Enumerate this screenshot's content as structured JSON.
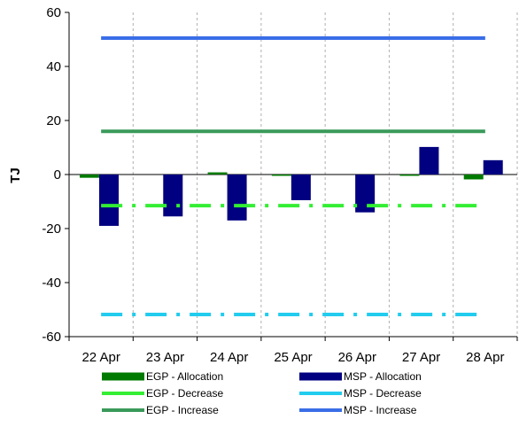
{
  "chart_data": {
    "type": "bar",
    "ylabel": "TJ",
    "ylim": [
      -60,
      60
    ],
    "yticks": [
      -60,
      -40,
      -20,
      0,
      20,
      40,
      60
    ],
    "categories": [
      "22 Apr",
      "23 Apr",
      "24 Apr",
      "25 Apr",
      "26 Apr",
      "27 Apr",
      "28 Apr"
    ],
    "bar_series": [
      {
        "name": "EGP - Allocation",
        "color": "#007a00",
        "values": [
          -1.2,
          0,
          0.8,
          -0.4,
          0,
          -0.4,
          -1.8
        ]
      },
      {
        "name": "MSP - Allocation",
        "color": "#000080",
        "values": [
          -19,
          -15.5,
          -17,
          -9.5,
          -14,
          10.2,
          5.3
        ]
      }
    ],
    "line_series": [
      {
        "name": "EGP - Decrease",
        "color": "#33ee33",
        "style": "dash-dot",
        "values": [
          -11.5,
          -11.5,
          -11.5,
          -11.5,
          -11.5,
          -11.5,
          -11.5
        ]
      },
      {
        "name": "MSP - Decrease",
        "color": "#22ccee",
        "style": "dash-dot",
        "values": [
          -51.8,
          -51.8,
          -51.8,
          -51.8,
          -51.8,
          -51.8,
          -51.8
        ]
      },
      {
        "name": "EGP - Increase",
        "color": "#3a9a5a",
        "style": "solid",
        "values": [
          16,
          16,
          16,
          16,
          16,
          16,
          16
        ]
      },
      {
        "name": "MSP - Increase",
        "color": "#3a6ee8",
        "style": "solid",
        "values": [
          50.5,
          50.5,
          50.5,
          50.5,
          50.5,
          50.5,
          50.5
        ]
      }
    ],
    "legend_order": [
      "EGP - Allocation",
      "MSP - Allocation",
      "EGP - Decrease",
      "MSP - Decrease",
      "EGP - Increase",
      "MSP - Increase"
    ],
    "grid": "vertical dashed",
    "legend_position": "bottom"
  }
}
